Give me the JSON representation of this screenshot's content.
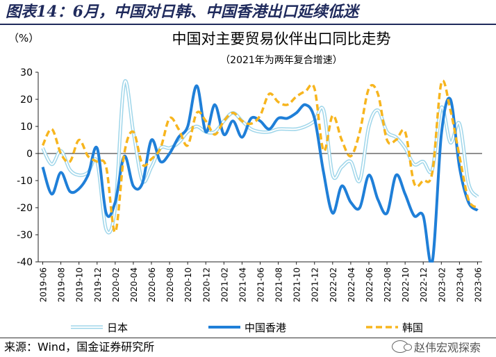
{
  "figure": {
    "title": "图表14：6月，中国对日韩、中国香港出口延续低迷",
    "unit": "（%）",
    "source": "来源：Wind，国金证券研究所",
    "watermark": "赵伟宏观探索",
    "watermark_icon": "wechat-icon"
  },
  "colors": {
    "japan": "#9fd6ea",
    "hongkong": "#1f7fd8",
    "korea": "#f7b51e",
    "title": "#1f2a5c"
  },
  "chart_data": {
    "type": "line",
    "title": "中国对主要贸易伙伴出口同比走势",
    "subtitle": "（2021年为两年复合增速）",
    "ylabel": "（%）",
    "ylim": [
      -40,
      30
    ],
    "yticks": [
      "30",
      "20",
      "10",
      "0",
      "-10",
      "-20",
      "-30",
      "-40"
    ],
    "grid": false,
    "legend": "bottom",
    "x": [
      "2019-06",
      "2019-07",
      "2019-08",
      "2019-09",
      "2019-10",
      "2019-11",
      "2019-12",
      "2020-01",
      "2020-02",
      "2020-03",
      "2020-04",
      "2020-05",
      "2020-06",
      "2020-07",
      "2020-08",
      "2020-09",
      "2020-10",
      "2020-11",
      "2020-12",
      "2021-01",
      "2021-02",
      "2021-03",
      "2021-04",
      "2021-05",
      "2021-06",
      "2021-07",
      "2021-08",
      "2021-09",
      "2021-10",
      "2021-11",
      "2021-12",
      "2022-01",
      "2022-02",
      "2022-03",
      "2022-04",
      "2022-05",
      "2022-06",
      "2022-07",
      "2022-08",
      "2022-09",
      "2022-10",
      "2022-11",
      "2022-12",
      "2023-01",
      "2023-02",
      "2023-03",
      "2023-04",
      "2023-05",
      "2023-06"
    ],
    "xticks": [
      "2019-06",
      "2019-08",
      "2019-10",
      "2019-12",
      "2020-02",
      "2020-04",
      "2020-06",
      "2020-08",
      "2020-10",
      "2020-12",
      "2021-02",
      "2021-04",
      "2021-06",
      "2021-08",
      "2021-10",
      "2021-12",
      "2022-02",
      "2022-04",
      "2022-06",
      "2022-08",
      "2022-10",
      "2022-12",
      "2023-02",
      "2023-04",
      "2023-06"
    ],
    "series": [
      {
        "name": "日本",
        "style": "double",
        "values": [
          2,
          -4,
          1,
          -6,
          -8,
          -7,
          -3,
          -28,
          -20,
          26,
          8,
          -10,
          -5,
          2,
          2,
          4,
          8,
          10,
          8,
          8,
          12,
          15,
          12,
          9,
          8,
          8,
          9,
          9,
          9,
          10,
          12,
          16,
          -8,
          -5,
          -3,
          -10,
          10,
          16,
          8,
          6,
          2,
          -4,
          -3,
          -6,
          17,
          4,
          11,
          -11,
          -16
        ]
      },
      {
        "name": "中国香港",
        "style": "solid",
        "values": [
          -5,
          -15,
          -7,
          -14,
          -13,
          -8,
          2,
          -22,
          -18,
          -1,
          -12,
          -11,
          5,
          -3,
          0,
          6,
          10,
          25,
          8,
          18,
          7,
          12,
          6,
          13,
          12,
          9,
          13,
          13,
          15,
          18,
          13,
          -7,
          -22,
          -12,
          -18,
          -20,
          -8,
          -17,
          -22,
          -8,
          -15,
          -23,
          -23,
          -40,
          7,
          20,
          -5,
          -18,
          -21
        ]
      },
      {
        "name": "韩国",
        "style": "dashed",
        "values": [
          3,
          9,
          0,
          -3,
          5,
          -1,
          -3,
          -5,
          -29,
          0,
          8,
          -4,
          -2,
          2,
          13,
          9,
          3,
          15,
          12,
          7,
          12,
          15,
          12,
          11,
          14,
          22,
          19,
          18,
          21,
          23,
          24,
          1,
          14,
          5,
          -1,
          8,
          24,
          22,
          5,
          5,
          8,
          -11,
          -10,
          -7,
          26,
          16,
          -1,
          -17,
          -20
        ]
      }
    ]
  }
}
